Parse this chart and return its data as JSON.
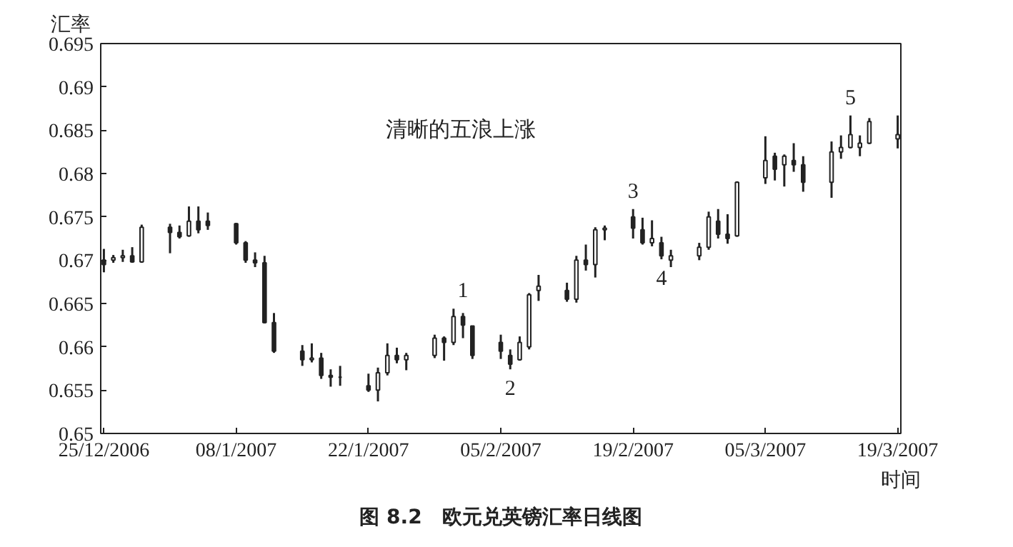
{
  "chart_data": {
    "type": "candlestick",
    "title": "图 8.2　欧元兑英镑汇率日线图",
    "xlabel": "时间",
    "ylabel": "汇率",
    "x": [
      "2006-12-25",
      "2006-12-26",
      "2006-12-27",
      "2006-12-28",
      "2006-12-29",
      "2007-01-01",
      "2007-01-02",
      "2007-01-03",
      "2007-01-04",
      "2007-01-05",
      "2007-01-08",
      "2007-01-09",
      "2007-01-10",
      "2007-01-11",
      "2007-01-12",
      "2007-01-15",
      "2007-01-16",
      "2007-01-17",
      "2007-01-18",
      "2007-01-19",
      "2007-01-22",
      "2007-01-23",
      "2007-01-24",
      "2007-01-25",
      "2007-01-26",
      "2007-01-29",
      "2007-01-30",
      "2007-01-31",
      "2007-02-01",
      "2007-02-02",
      "2007-02-05",
      "2007-02-06",
      "2007-02-07",
      "2007-02-08",
      "2007-02-09",
      "2007-02-12",
      "2007-02-13",
      "2007-02-14",
      "2007-02-15",
      "2007-02-16",
      "2007-02-19",
      "2007-02-20",
      "2007-02-21",
      "2007-02-22",
      "2007-02-23",
      "2007-02-26",
      "2007-02-27",
      "2007-02-28",
      "2007-03-01",
      "2007-03-02",
      "2007-03-05",
      "2007-03-06",
      "2007-03-07",
      "2007-03-08",
      "2007-03-09",
      "2007-03-12",
      "2007-03-13",
      "2007-03-14",
      "2007-03-15",
      "2007-03-16",
      "2007-03-19"
    ],
    "ohlc": [
      [
        0.67,
        0.6713,
        0.6686,
        0.6695
      ],
      [
        0.67,
        0.6706,
        0.6697,
        0.6703
      ],
      [
        0.6703,
        0.6712,
        0.6698,
        0.6705
      ],
      [
        0.6705,
        0.6715,
        0.6697,
        0.6698
      ],
      [
        0.6698,
        0.6741,
        0.6697,
        0.6738
      ],
      [
        0.6738,
        0.6742,
        0.6708,
        0.6732
      ],
      [
        0.6732,
        0.674,
        0.6725,
        0.6727
      ],
      [
        0.6728,
        0.6762,
        0.6727,
        0.6745
      ],
      [
        0.6745,
        0.6762,
        0.6731,
        0.6735
      ],
      [
        0.6745,
        0.6755,
        0.6735,
        0.674
      ],
      [
        0.6742,
        0.6743,
        0.6718,
        0.672
      ],
      [
        0.672,
        0.6722,
        0.6697,
        0.67
      ],
      [
        0.67,
        0.6709,
        0.6692,
        0.6697
      ],
      [
        0.6697,
        0.6705,
        0.6627,
        0.6628
      ],
      [
        0.6628,
        0.6639,
        0.6593,
        0.6595
      ],
      [
        0.6595,
        0.6602,
        0.6578,
        0.6585
      ],
      [
        0.6585,
        0.6604,
        0.6582,
        0.6587
      ],
      [
        0.6587,
        0.6593,
        0.6563,
        0.6567
      ],
      [
        0.6567,
        0.6574,
        0.6554,
        0.6565
      ],
      [
        0.6565,
        0.6578,
        0.6555,
        0.6565
      ],
      [
        0.6555,
        0.6569,
        0.6548,
        0.655
      ],
      [
        0.655,
        0.6576,
        0.6537,
        0.657
      ],
      [
        0.657,
        0.6604,
        0.6567,
        0.659
      ],
      [
        0.659,
        0.6599,
        0.6581,
        0.6585
      ],
      [
        0.6585,
        0.6593,
        0.6573,
        0.659
      ],
      [
        0.659,
        0.6614,
        0.6587,
        0.661
      ],
      [
        0.661,
        0.6612,
        0.6584,
        0.6605
      ],
      [
        0.6605,
        0.6644,
        0.6602,
        0.6635
      ],
      [
        0.6635,
        0.6639,
        0.661,
        0.6625
      ],
      [
        0.6624,
        0.6624,
        0.6586,
        0.659
      ],
      [
        0.6605,
        0.6614,
        0.6586,
        0.6595
      ],
      [
        0.659,
        0.6597,
        0.6574,
        0.658
      ],
      [
        0.6585,
        0.6612,
        0.6584,
        0.6605
      ],
      [
        0.66,
        0.6662,
        0.6597,
        0.666
      ],
      [
        0.6665,
        0.6683,
        0.6653,
        0.667
      ],
      [
        0.6665,
        0.6674,
        0.6652,
        0.6655
      ],
      [
        0.6655,
        0.6705,
        0.6651,
        0.67
      ],
      [
        0.67,
        0.6718,
        0.6688,
        0.6695
      ],
      [
        0.6695,
        0.6738,
        0.668,
        0.6735
      ],
      [
        0.6735,
        0.674,
        0.6723,
        0.6737
      ],
      [
        0.675,
        0.6759,
        0.6725,
        0.6737
      ],
      [
        0.6735,
        0.6749,
        0.6718,
        0.672
      ],
      [
        0.672,
        0.6746,
        0.6716,
        0.6725
      ],
      [
        0.672,
        0.6727,
        0.6701,
        0.6705
      ],
      [
        0.67,
        0.6712,
        0.6692,
        0.6705
      ],
      [
        0.6705,
        0.672,
        0.67,
        0.6715
      ],
      [
        0.6715,
        0.6756,
        0.6712,
        0.675
      ],
      [
        0.6745,
        0.6759,
        0.6725,
        0.673
      ],
      [
        0.673,
        0.6753,
        0.6719,
        0.6725
      ],
      [
        0.6728,
        0.6791,
        0.6727,
        0.679
      ],
      [
        0.6795,
        0.6843,
        0.6788,
        0.6815
      ],
      [
        0.682,
        0.6824,
        0.6792,
        0.6805
      ],
      [
        0.681,
        0.6822,
        0.6785,
        0.682
      ],
      [
        0.6815,
        0.6835,
        0.6802,
        0.681
      ],
      [
        0.681,
        0.682,
        0.6779,
        0.679
      ],
      [
        0.679,
        0.6837,
        0.6772,
        0.6825
      ],
      [
        0.6825,
        0.6844,
        0.6817,
        0.683
      ],
      [
        0.683,
        0.6867,
        0.6829,
        0.6845
      ],
      [
        0.683,
        0.6844,
        0.682,
        0.6835
      ],
      [
        0.6835,
        0.6864,
        0.6834,
        0.686
      ],
      [
        0.684,
        0.6867,
        0.6829,
        0.6845
      ]
    ],
    "color": "#222222",
    "xlim": [
      "2006-12-24T16:00",
      "2007-03-19T08:00"
    ],
    "xticks": [
      {
        "value": "2006-12-25",
        "label": "25/12/2006"
      },
      {
        "value": "2007-01-08",
        "label": "08/1/2007"
      },
      {
        "value": "2007-01-22",
        "label": "22/1/2007"
      },
      {
        "value": "2007-02-05",
        "label": "05/2/2007"
      },
      {
        "value": "2007-02-19",
        "label": "19/2/2007"
      },
      {
        "value": "2007-03-05",
        "label": "05/3/2007"
      },
      {
        "value": "2007-03-19",
        "label": "19/3/2007"
      }
    ],
    "ylim": [
      0.65,
      0.695
    ],
    "yticks": [
      0.65,
      0.655,
      0.66,
      0.665,
      0.67,
      0.675,
      0.68,
      0.685,
      0.69,
      0.695
    ],
    "annotations": [
      "清晰的五浪上涨",
      {
        "text": "1",
        "x": "2007-02-01",
        "y": 0.6644
      },
      {
        "text": "2",
        "x": "2007-02-06",
        "y": 0.6574
      },
      {
        "text": "3",
        "x": "2007-02-19",
        "y": 0.6759
      },
      {
        "text": "4",
        "x": "2007-02-22",
        "y": 0.6701
      },
      {
        "text": "5",
        "x": "2007-03-14",
        "y": 0.6867
      }
    ],
    "grid": false
  }
}
